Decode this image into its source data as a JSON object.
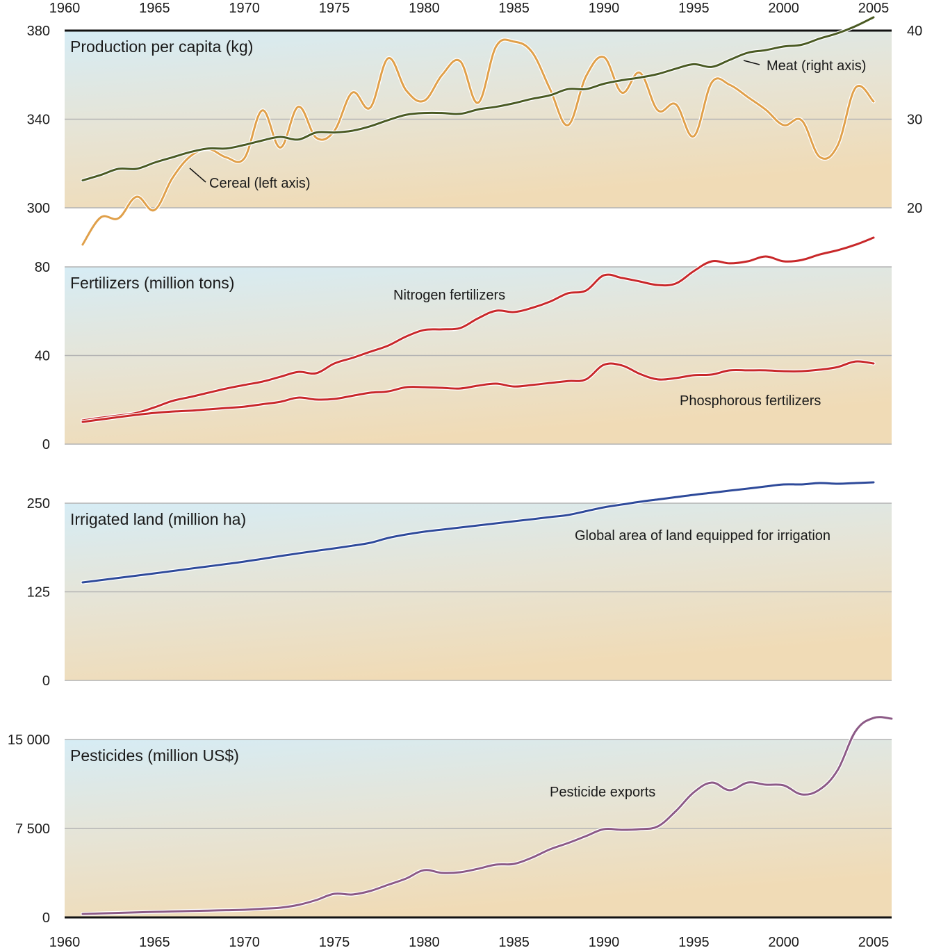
{
  "chart_data": [
    {
      "type": "line",
      "id": "production",
      "title": "Production per capita (kg)",
      "x_range": [
        1960,
        2006
      ],
      "xticks": [
        1960,
        1965,
        1970,
        1975,
        1980,
        1985,
        1990,
        1995,
        2000,
        2005
      ],
      "left_axis": {
        "ylim": [
          300,
          380
        ],
        "ticks": [
          300,
          340,
          380
        ],
        "tick_labels": [
          "300",
          "340",
          "380"
        ]
      },
      "right_axis": {
        "ylim": [
          20,
          40
        ],
        "ticks": [
          20,
          30,
          40
        ],
        "tick_labels": [
          "20",
          "30",
          "40"
        ]
      },
      "grid": true,
      "series": [
        {
          "name": "Cereal",
          "label": "Cereal (left axis)",
          "axis": "left",
          "color": "#e0a04a",
          "x": [
            1961,
            1962,
            1963,
            1964,
            1965,
            1966,
            1967,
            1968,
            1969,
            1970,
            1971,
            1972,
            1973,
            1974,
            1975,
            1976,
            1977,
            1978,
            1979,
            1980,
            1981,
            1982,
            1983,
            1984,
            1985,
            1986,
            1987,
            1988,
            1989,
            1990,
            1991,
            1992,
            1993,
            1994,
            1995,
            1996,
            1997,
            1998,
            1999,
            2000,
            2001,
            2002,
            2003,
            2004,
            2005
          ],
          "values": [
            283.4,
            295.6,
            295.3,
            305,
            299,
            313.5,
            323.3,
            326.5,
            322.7,
            322.4,
            344,
            327.2,
            345.6,
            331.6,
            334.7,
            352,
            345.2,
            367.5,
            353,
            348.3,
            360,
            366.2,
            347.4,
            372.8,
            375,
            370.3,
            353.6,
            337.3,
            359.3,
            368,
            352,
            361,
            344,
            346.7,
            332.3,
            356.6,
            355.5,
            350,
            344.3,
            337.3,
            339.5,
            323,
            328.1,
            354.2,
            348
          ]
        },
        {
          "name": "Meat",
          "label": "Meat (right axis)",
          "axis": "right",
          "color": "#4a5a23",
          "x": [
            1961,
            1962,
            1963,
            1964,
            1965,
            1966,
            1967,
            1968,
            1969,
            1970,
            1971,
            1972,
            1973,
            1974,
            1975,
            1976,
            1977,
            1978,
            1979,
            1980,
            1981,
            1982,
            1983,
            1984,
            1985,
            1986,
            1987,
            1988,
            1989,
            1990,
            1991,
            1992,
            1993,
            1994,
            1995,
            1996,
            1997,
            1998,
            1999,
            2000,
            2001,
            2002,
            2003,
            2004,
            2005
          ],
          "values": [
            23.1,
            23.7,
            24.4,
            24.4,
            25.1,
            25.7,
            26.3,
            26.7,
            26.7,
            27.1,
            27.6,
            28.0,
            27.7,
            28.5,
            28.5,
            28.7,
            29.2,
            29.9,
            30.5,
            30.7,
            30.7,
            30.6,
            31.1,
            31.4,
            31.8,
            32.3,
            32.7,
            33.4,
            33.4,
            34.0,
            34.4,
            34.7,
            35.1,
            35.7,
            36.2,
            35.9,
            36.7,
            37.5,
            37.8,
            38.2,
            38.4,
            39.1,
            39.7,
            40.5,
            41.5
          ]
        }
      ]
    },
    {
      "type": "line",
      "id": "fertilizers",
      "title": "Fertilizers (million tons)",
      "x_range": [
        1960,
        2006
      ],
      "ylim": [
        0,
        80
      ],
      "yticks": [
        0,
        40,
        80
      ],
      "ytick_labels": [
        "0",
        "40",
        "80"
      ],
      "grid": true,
      "series": [
        {
          "name": "Nitrogen fertilizers",
          "color": "#c8282a",
          "x": [
            1961,
            1962,
            1963,
            1964,
            1965,
            1966,
            1967,
            1968,
            1969,
            1970,
            1971,
            1972,
            1973,
            1974,
            1975,
            1976,
            1977,
            1978,
            1979,
            1980,
            1981,
            1982,
            1983,
            1984,
            1985,
            1986,
            1987,
            1988,
            1989,
            1990,
            1991,
            1992,
            1993,
            1994,
            1995,
            1996,
            1997,
            1998,
            1999,
            2000,
            2001,
            2002,
            2003,
            2004,
            2005
          ],
          "values": [
            10.7,
            11.9,
            12.9,
            14.1,
            16.6,
            19.5,
            21.3,
            23.2,
            25.1,
            26.7,
            28.2,
            30.4,
            32.6,
            32,
            36.4,
            38.9,
            41.7,
            44.5,
            48.6,
            51.5,
            51.8,
            52.4,
            56.8,
            60.2,
            59.6,
            61.5,
            64.3,
            68.1,
            69.3,
            76.2,
            75,
            73.4,
            71.8,
            72.5,
            78.1,
            82.5,
            81.6,
            82.5,
            84.7,
            82.5,
            83.1,
            85.6,
            87.5,
            90,
            93.2
          ]
        },
        {
          "name": "Phosphorous fertilizers",
          "color": "#c8282a",
          "x": [
            1961,
            1962,
            1963,
            1964,
            1965,
            1966,
            1967,
            1968,
            1969,
            1970,
            1971,
            1972,
            1973,
            1974,
            1975,
            1976,
            1977,
            1978,
            1979,
            1980,
            1981,
            1982,
            1983,
            1984,
            1985,
            1986,
            1987,
            1988,
            1989,
            1990,
            1991,
            1992,
            1993,
            1994,
            1995,
            1996,
            1997,
            1998,
            1999,
            2000,
            2001,
            2002,
            2003,
            2004,
            2005
          ],
          "values": [
            10,
            11.1,
            12.2,
            13.2,
            14.1,
            14.7,
            15.1,
            15.7,
            16.3,
            16.9,
            18.0,
            19.1,
            21,
            20.1,
            20.4,
            21.8,
            23.2,
            23.8,
            25.7,
            25.7,
            25.4,
            25.1,
            26.4,
            27.3,
            26,
            26.7,
            27.6,
            28.5,
            29.2,
            35.8,
            35.5,
            31.7,
            29.2,
            29.8,
            31.1,
            31.4,
            33.3,
            33.3,
            33.3,
            32.9,
            32.9,
            33.6,
            34.8,
            37.3,
            36.4
          ]
        }
      ]
    },
    {
      "type": "line",
      "id": "irrigation",
      "title": "Irrigated land (million ha)",
      "x_range": [
        1960,
        2006
      ],
      "ylim": [
        0,
        250
      ],
      "yticks": [
        0,
        125,
        250
      ],
      "ytick_labels": [
        "0",
        "125",
        "250"
      ],
      "grid": true,
      "series": [
        {
          "name": "Global area of land equipped for irrigation",
          "color": "#2e4a9a",
          "x": [
            1961,
            1962,
            1963,
            1964,
            1965,
            1966,
            1967,
            1968,
            1969,
            1970,
            1971,
            1972,
            1973,
            1974,
            1975,
            1976,
            1977,
            1978,
            1979,
            1980,
            1981,
            1982,
            1983,
            1984,
            1985,
            1986,
            1987,
            1988,
            1989,
            1990,
            1991,
            1992,
            1993,
            1994,
            1995,
            1996,
            1997,
            1998,
            1999,
            2000,
            2001,
            2002,
            2003,
            2004,
            2005
          ],
          "values": [
            138.2,
            141.4,
            144.6,
            147.8,
            151,
            154.3,
            157.6,
            160.9,
            164.2,
            167.6,
            171.5,
            175.5,
            179.2,
            182.8,
            186.3,
            190,
            194.1,
            201,
            205.9,
            209.8,
            212.7,
            215.7,
            218.6,
            221.6,
            224.5,
            227.4,
            230.4,
            233.3,
            238.7,
            244.1,
            248.1,
            252,
            255.3,
            258.5,
            261.8,
            264.7,
            267.7,
            270.6,
            273.6,
            276.5,
            276.5,
            278.4,
            277.5,
            278.4,
            279.4
          ]
        }
      ]
    },
    {
      "type": "line",
      "id": "pesticides",
      "title": "Pesticides (million US$)",
      "x_range": [
        1960,
        2006
      ],
      "ylim": [
        0,
        15000
      ],
      "yticks": [
        0,
        7500,
        15000
      ],
      "ytick_labels": [
        "0",
        "7 500",
        "15 000"
      ],
      "grid": true,
      "series": [
        {
          "name": "Pesticide exports",
          "color": "#8c5a86",
          "x": [
            1961,
            1962,
            1963,
            1964,
            1965,
            1966,
            1967,
            1968,
            1969,
            1970,
            1971,
            1972,
            1973,
            1974,
            1975,
            1976,
            1977,
            1978,
            1979,
            1980,
            1981,
            1982,
            1983,
            1984,
            1985,
            1986,
            1987,
            1988,
            1989,
            1990,
            1991,
            1992,
            1993,
            1994,
            1995,
            1996,
            1997,
            1998,
            1999,
            2000,
            2001,
            2002,
            2003,
            2004,
            2005,
            2006
          ],
          "values": [
            293,
            337,
            381,
            425,
            469,
            504,
            539,
            574,
            610,
            645,
            730,
            820,
            1055,
            1465,
            1992,
            1934,
            2227,
            2754,
            3282,
            3985,
            3750,
            3809,
            4102,
            4454,
            4512,
            5040,
            5743,
            6270,
            6856,
            7442,
            7384,
            7442,
            7677,
            8966,
            10548,
            11368,
            10724,
            11368,
            11193,
            11134,
            10372,
            10782,
            12423,
            15705,
            16818,
            16760
          ]
        }
      ]
    }
  ],
  "x_tick_labels": [
    "1960",
    "1965",
    "1970",
    "1975",
    "1980",
    "1985",
    "1990",
    "1995",
    "2000",
    "2005"
  ],
  "panel_titles": {
    "production": "Production per capita (kg)",
    "fertilizers": "Fertilizers (million tons)",
    "irrigation": "Irrigated land (million ha)",
    "pesticides": "Pesticides (million US$)"
  },
  "annotations": {
    "cereal": "Cereal (left axis)",
    "meat": "Meat (right axis)",
    "nitrogen": "Nitrogen fertilizers",
    "phosphorous": "Phosphorous fertilizers",
    "irrigation": "Global area of land equipped for irrigation",
    "pesticides": "Pesticide exports"
  },
  "colors": {
    "bg_top": "#d6ecf5",
    "bg_bottom": "#f0dbb6",
    "grid": "#b8b8b8",
    "axis_dark": "#111111"
  }
}
